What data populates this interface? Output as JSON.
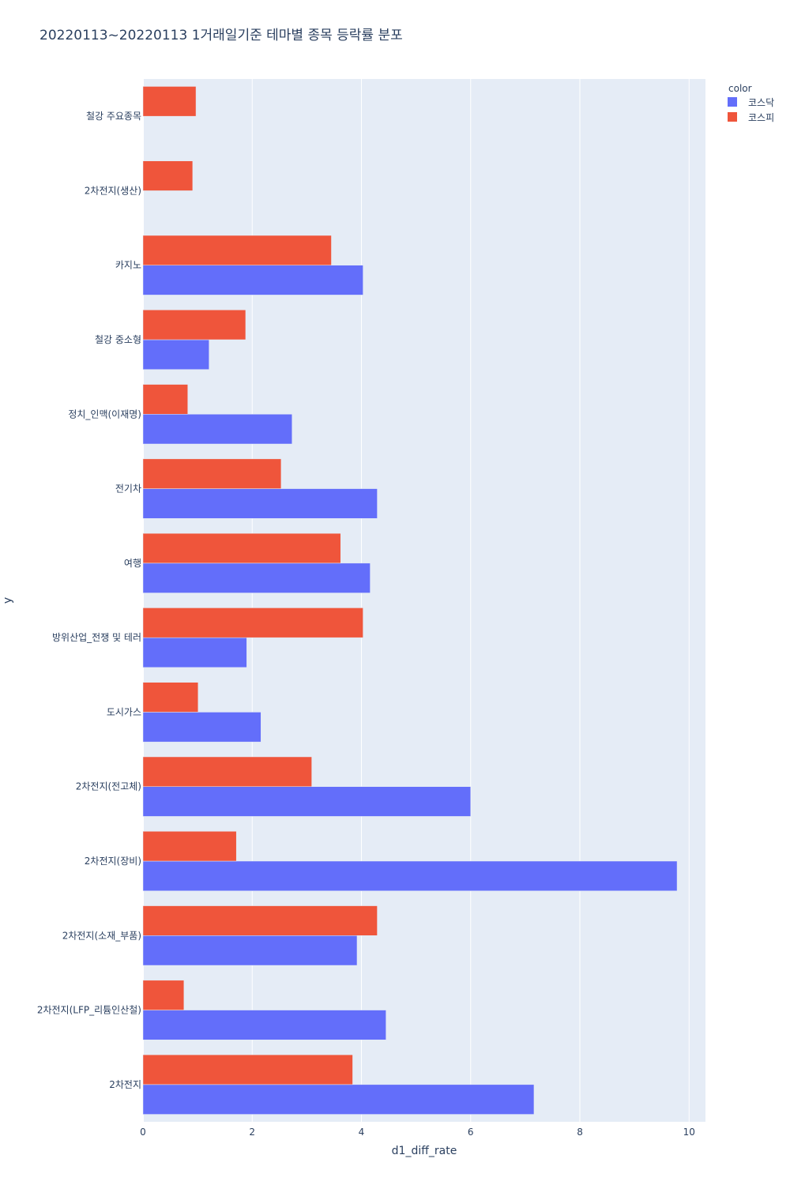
{
  "chart_data": {
    "type": "bar",
    "orientation": "horizontal",
    "barmode": "group",
    "title": "20220113~20220113 1거래일기준 테마별 종목 등락률 분포",
    "xlabel": "d1_diff_rate",
    "ylabel": "y",
    "xlim": [
      0,
      10.3
    ],
    "xticks": [
      0,
      2,
      4,
      6,
      8,
      10
    ],
    "xtick_labels": [
      "0",
      "2",
      "4",
      "6",
      "8",
      "10"
    ],
    "grid": true,
    "legend": {
      "title": "color",
      "placement": "top-right"
    },
    "categories": [
      "2차전지",
      "2차전지(LFP_리튬인산철)",
      "2차전지(소재_부품)",
      "2차전지(장비)",
      "2차전지(전고체)",
      "도시가스",
      "방위산업_전쟁 및 테러",
      "여행",
      "전기차",
      "정치_인맥(이재명)",
      "철강 중소형",
      "카지노",
      "2차전지(생산)",
      "철강 주요종목"
    ],
    "series": [
      {
        "name": "코스닥",
        "color": "#636efa",
        "values": [
          7.16,
          4.45,
          3.92,
          9.78,
          6.0,
          2.16,
          1.9,
          4.16,
          4.29,
          2.73,
          1.21,
          4.03,
          null,
          null
        ]
      },
      {
        "name": "코스피",
        "color": "#ef553b",
        "values": [
          3.84,
          0.75,
          4.29,
          1.71,
          3.09,
          1.01,
          4.03,
          3.62,
          2.53,
          0.82,
          1.88,
          3.45,
          0.91,
          0.97
        ]
      }
    ],
    "colors": {
      "plot_bg": "#e5ecf6",
      "grid": "#ffffff",
      "text": "#2a3f5f"
    }
  }
}
